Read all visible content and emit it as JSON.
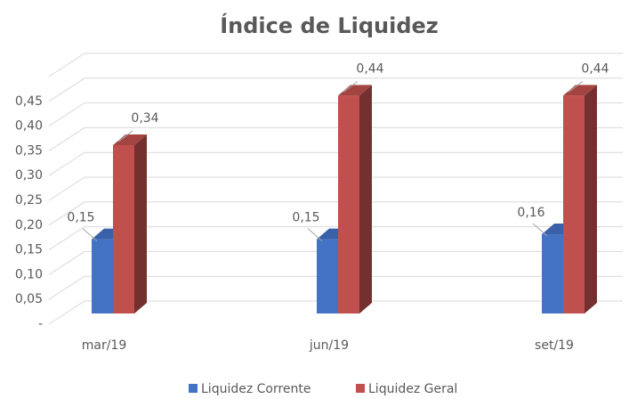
{
  "chart_data": {
    "type": "bar3d",
    "title": "Índice de Liquidez",
    "categories": [
      "mar/19",
      "jun/19",
      "set/19"
    ],
    "series": [
      {
        "name": "Liquidez Corrente",
        "color": "#4472c4",
        "values": [
          0.15,
          0.15,
          0.16
        ],
        "value_labels": [
          "0,15",
          "0,15",
          "0,16"
        ]
      },
      {
        "name": "Liquidez Geral",
        "color": "#c0504d",
        "values": [
          0.34,
          0.44,
          0.44
        ],
        "value_labels": [
          "0,34",
          "0,44",
          "0,44"
        ]
      }
    ],
    "ylim": [
      0,
      0.5
    ],
    "yticks": [
      {
        "value": 0,
        "label": "-"
      },
      {
        "value": 0.05,
        "label": "0,05"
      },
      {
        "value": 0.1,
        "label": "0,10"
      },
      {
        "value": 0.15,
        "label": "0,15"
      },
      {
        "value": 0.2,
        "label": "0,20"
      },
      {
        "value": 0.25,
        "label": "0,25"
      },
      {
        "value": 0.3,
        "label": "0,30"
      },
      {
        "value": 0.35,
        "label": "0,35"
      },
      {
        "value": 0.4,
        "label": "0,40"
      },
      {
        "value": 0.45,
        "label": "0,45"
      }
    ],
    "grid": true,
    "legend": "bottom"
  }
}
